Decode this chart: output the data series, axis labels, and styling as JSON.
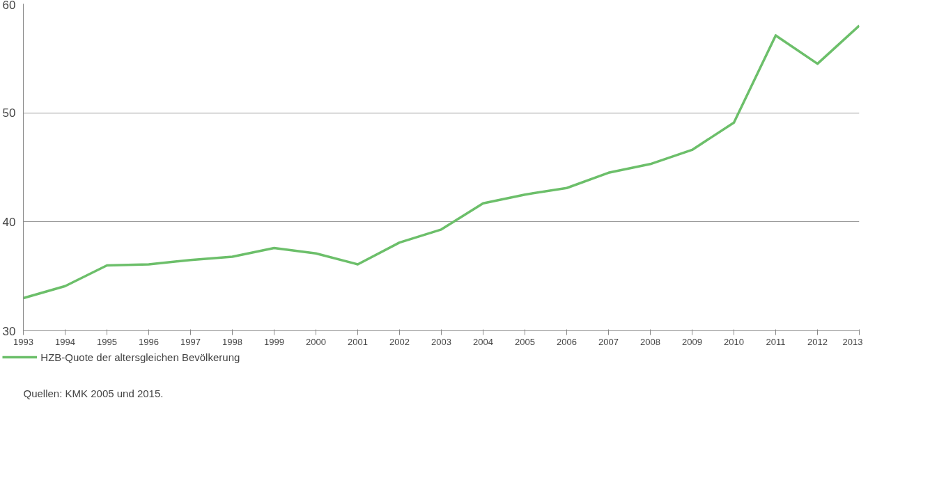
{
  "chart_data": {
    "type": "line",
    "x": [
      1993,
      1994,
      1995,
      1996,
      1997,
      1998,
      1999,
      2000,
      2001,
      2002,
      2003,
      2004,
      2005,
      2006,
      2007,
      2008,
      2009,
      2010,
      2011,
      2012,
      2013
    ],
    "series": [
      {
        "name": "HZB-Quote der altersgleichen Bevölkerung",
        "color": "#6cbf6a",
        "values": [
          33.0,
          34.1,
          36.0,
          36.1,
          36.5,
          36.8,
          37.6,
          37.1,
          36.1,
          38.1,
          39.3,
          41.7,
          42.5,
          43.1,
          44.5,
          45.3,
          46.6,
          49.1,
          57.1,
          54.5,
          58.0
        ]
      }
    ],
    "xlim": [
      1993,
      2013
    ],
    "xticks": [
      1993,
      1994,
      1995,
      1996,
      1997,
      1998,
      1999,
      2000,
      2001,
      2002,
      2003,
      2004,
      2005,
      2006,
      2007,
      2008,
      2009,
      2010,
      2011,
      2012,
      2013
    ],
    "ylim": [
      30,
      60
    ],
    "yticks": [
      30,
      40,
      50,
      60
    ],
    "grid": "y",
    "legend": "bottom",
    "marker": "none",
    "line_style": "solid",
    "annotations": [
      "Quellen: KMK 2005 und 2015."
    ]
  }
}
